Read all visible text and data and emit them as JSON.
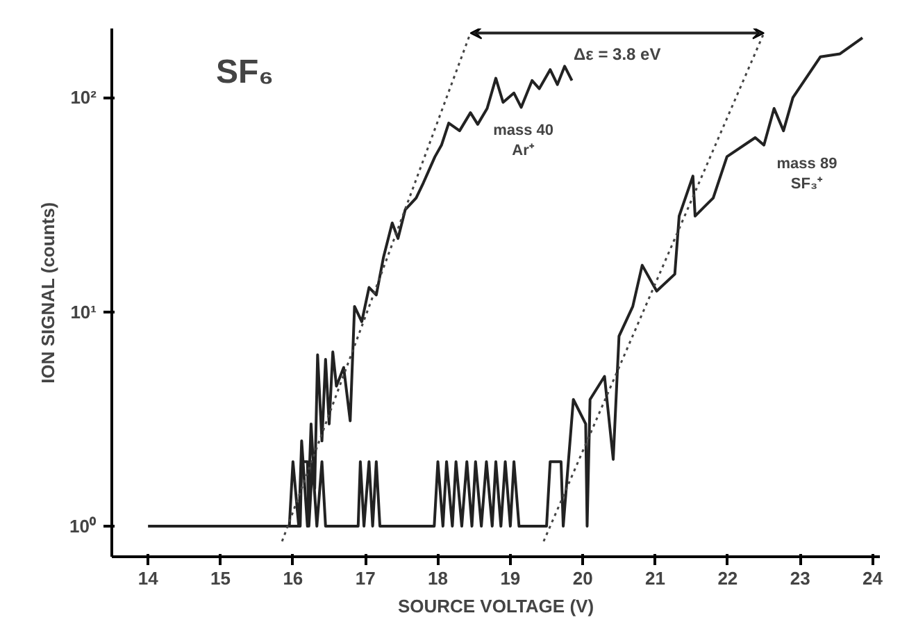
{
  "chart_data": {
    "type": "line",
    "xlabel": "SOURCE VOLTAGE (V)",
    "ylabel": "ION SIGNAL (counts)",
    "log": "y",
    "grid": false,
    "marker": "none",
    "xlim": [
      13.5,
      24.1
    ],
    "ylim": [
      0.72,
      210
    ],
    "xticks": [
      14,
      15,
      16,
      17,
      18,
      19,
      20,
      21,
      22,
      23,
      24
    ],
    "yticks": [
      {
        "value": 1,
        "label": "10⁰"
      },
      {
        "value": 10,
        "label": "10¹"
      },
      {
        "value": 100,
        "label": "10²"
      }
    ],
    "annotations": [
      "SF₆",
      "Δε = 3.8 eV"
    ],
    "series": [
      {
        "name": "mass 40\nAr⁺",
        "color": "#222222",
        "line_style": "solid",
        "x": [
          15.95,
          16.0,
          16.08,
          16.12,
          16.2,
          16.25,
          16.3,
          16.34,
          16.4,
          16.45,
          16.5,
          16.55,
          16.6,
          16.7,
          16.79,
          16.85,
          16.95,
          17.05,
          17.15,
          17.25,
          17.37,
          17.45,
          17.55,
          17.7,
          17.8,
          17.96,
          18.05,
          18.15,
          18.3,
          18.45,
          18.55,
          18.68,
          18.8,
          18.9,
          19.05,
          19.15,
          19.3,
          19.4,
          19.55,
          19.65,
          19.75,
          19.85
        ],
        "values": [
          1,
          2,
          1,
          2.5,
          1,
          3,
          1.5,
          6.3,
          2.5,
          6,
          3,
          6.5,
          4.5,
          5.5,
          3.1,
          10.6,
          9,
          13,
          12,
          18,
          26,
          22,
          30,
          34,
          40,
          53,
          60,
          76,
          70,
          85,
          75,
          89,
          123,
          95,
          105,
          90,
          120,
          110,
          135,
          115,
          140,
          120
        ]
      },
      {
        "name": "mass 89\nSF₃⁺",
        "color": "#222222",
        "line_style": "solid",
        "x": [
          14,
          16.1,
          16.12,
          16.2,
          16.22,
          16.27,
          16.33,
          16.4,
          16.45,
          16.9,
          16.93,
          16.98,
          17.05,
          17.1,
          17.15,
          17.2,
          17.95,
          18.0,
          18.07,
          18.12,
          18.2,
          18.25,
          18.33,
          18.4,
          18.47,
          18.52,
          18.6,
          18.67,
          18.75,
          18.8,
          18.87,
          18.93,
          19.0,
          19.05,
          19.12,
          19.5,
          19.55,
          19.7,
          19.73,
          19.87,
          20.04,
          20.06,
          20.1,
          20.3,
          20.42,
          20.5,
          20.69,
          20.82,
          21.02,
          21.27,
          21.33,
          21.52,
          21.55,
          21.8,
          21.99,
          22.38,
          22.5,
          22.64,
          22.77,
          22.9,
          23.28,
          23.55,
          23.86
        ],
        "values": [
          1,
          1,
          2,
          2,
          1,
          2,
          1,
          2,
          1,
          1,
          2,
          1,
          2,
          1,
          2,
          1,
          1,
          2,
          1,
          2,
          1,
          2,
          1,
          2,
          1,
          2,
          1,
          2,
          1,
          2,
          1,
          2,
          1,
          2,
          1,
          1,
          2,
          2,
          1,
          3.9,
          3,
          1,
          3.9,
          5,
          2.05,
          7.7,
          10.6,
          16.5,
          12.5,
          15,
          28,
          43,
          28,
          34,
          53,
          65,
          60,
          89,
          70,
          100,
          155,
          160,
          190
        ]
      },
      {
        "color": "#444444",
        "line_style": "dotted",
        "x": [
          15.85,
          18.45
        ],
        "values": [
          0.85,
          200
        ]
      },
      {
        "color": "#444444",
        "line_style": "dotted",
        "x": [
          19.46,
          22.5
        ],
        "values": [
          0.85,
          200
        ]
      }
    ]
  }
}
